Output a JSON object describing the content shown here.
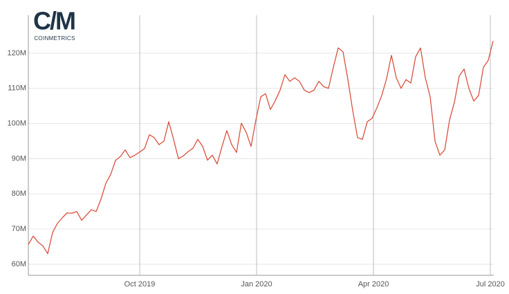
{
  "logo": {
    "mark": "C/M",
    "wordmark": "COINMETRICS"
  },
  "chart_data": {
    "type": "line",
    "series": [
      {
        "color": "#d9503f",
        "values": [
          65.6,
          68.0,
          66.3,
          65.2,
          63.0,
          69.0,
          71.6,
          73.2,
          74.6,
          74.5,
          75.0,
          72.5,
          74.0,
          75.5,
          75.0,
          78.5,
          83.0,
          85.5,
          89.5,
          90.6,
          92.5,
          90.3,
          91.0,
          91.9,
          92.9,
          96.8,
          96.0,
          94.0,
          95.0,
          100.5,
          95.5,
          90.0,
          90.8,
          92.0,
          93.0,
          95.5,
          93.5,
          89.6,
          91.0,
          88.5,
          93.5,
          98.0,
          94.0,
          91.8,
          100.1,
          97.5,
          93.5,
          101.0,
          107.6,
          108.5,
          104.0,
          106.5,
          109.5,
          113.9,
          112.0,
          113.0,
          112.0,
          109.5,
          108.8,
          109.5,
          112.0,
          110.5,
          110.0,
          116.0,
          121.5,
          120.4,
          112.5,
          103.7,
          96.0,
          95.5,
          100.5,
          101.5,
          104.5,
          108.0,
          112.8,
          119.4,
          113.0,
          110.0,
          112.5,
          111.5,
          119.0,
          121.5,
          113.0,
          107.6,
          95.0,
          91.0,
          92.5,
          101.0,
          106.0,
          113.5,
          115.5,
          110.0,
          106.4,
          108.0,
          116.0,
          118.0,
          123.5
        ]
      }
    ],
    "xlim": [
      0,
      96.14
    ],
    "xticks": [
      {
        "value": 23.0,
        "label": "Oct 2019"
      },
      {
        "value": 47.14,
        "label": "Jan 2020"
      },
      {
        "value": 71.29,
        "label": "Apr 2020"
      },
      {
        "value": 95.43,
        "label": "Jul 2020"
      }
    ],
    "ylim": [
      56.85,
      130.8
    ],
    "yticks": [
      {
        "value": 60,
        "label": "60M"
      },
      {
        "value": 70,
        "label": "70M"
      },
      {
        "value": 80,
        "label": "80M"
      },
      {
        "value": 90,
        "label": "90M"
      },
      {
        "value": 100,
        "label": "100M"
      },
      {
        "value": 110,
        "label": "110M"
      },
      {
        "value": 120,
        "label": "120M"
      }
    ],
    "grid": true
  }
}
